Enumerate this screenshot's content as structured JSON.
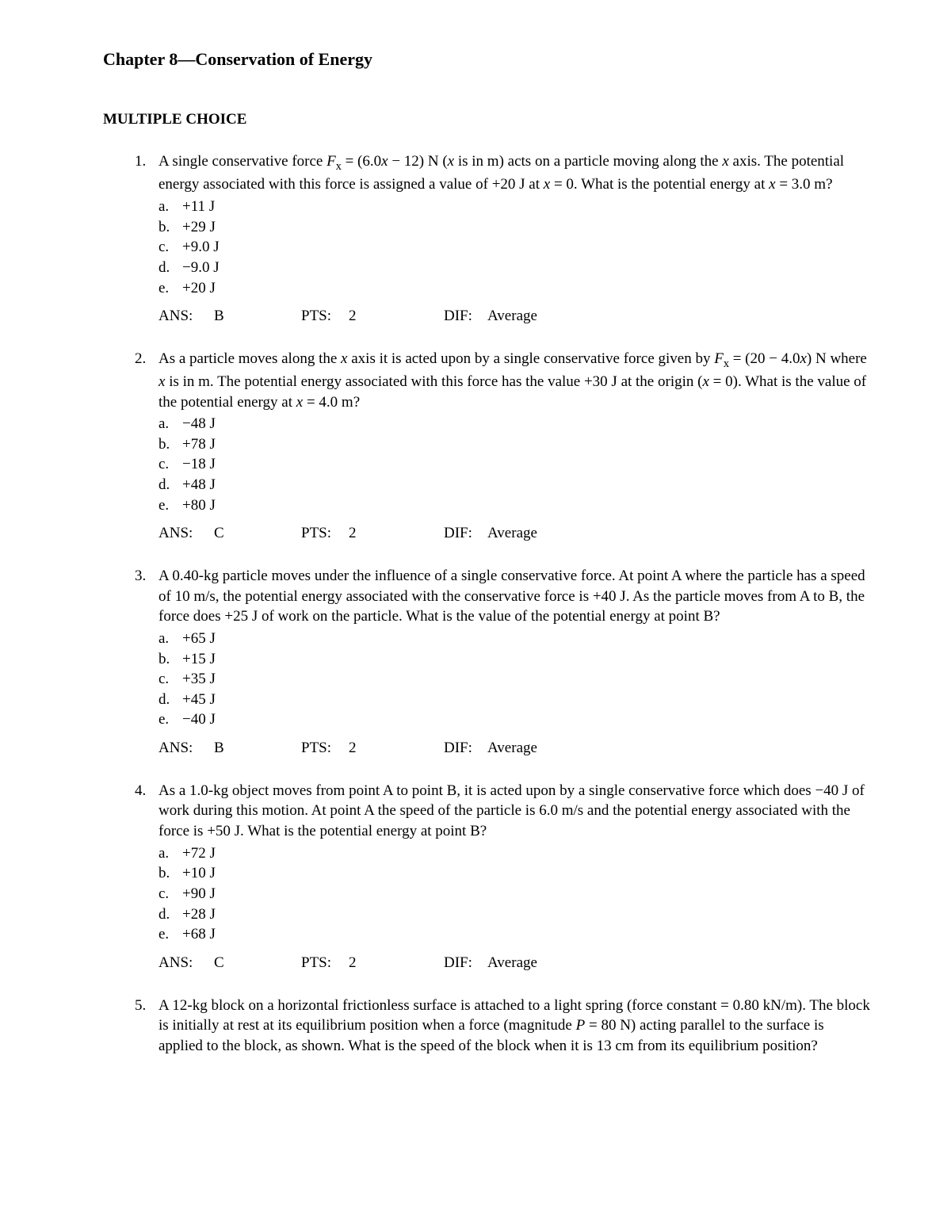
{
  "chapter_title": "Chapter 8—Conservation of Energy",
  "section_title": "MULTIPLE CHOICE",
  "labels": {
    "ans": "ANS:",
    "pts": "PTS:",
    "dif": "DIF:"
  },
  "questions": [
    {
      "number": "1.",
      "text_html": "A single conservative force <span class=\"italic\">F</span><span class=\"sub\">x</span> = (6.0<span class=\"italic\">x</span> − 12) N (<span class=\"italic\">x</span> is in m) acts on a particle moving along the <span class=\"italic\">x</span> axis. The potential energy associated with this force is assigned a value of +20 J at <span class=\"italic\">x</span> = 0. What is the potential energy at <span class=\"italic\">x</span> = 3.0 m?",
      "choices": [
        {
          "letter": "a.",
          "text": "+11 J"
        },
        {
          "letter": "b.",
          "text": "+29 J"
        },
        {
          "letter": "c.",
          "text": "+9.0 J"
        },
        {
          "letter": "d.",
          "text": "−9.0 J"
        },
        {
          "letter": "e.",
          "text": "+20 J"
        }
      ],
      "ans": "B",
      "pts": "2",
      "dif": "Average"
    },
    {
      "number": "2.",
      "text_html": "As a particle moves along the <span class=\"italic\">x</span> axis it is acted upon by a single conservative force given by <span class=\"italic\">F</span><span class=\"sub\">x</span> = (20 − 4.0<span class=\"italic\">x</span>) N where <span class=\"italic\">x</span> is in m. The potential energy associated with this force has the value +30 J at the origin (<span class=\"italic\">x</span> = 0). What is the value of the potential energy at <span class=\"italic\">x</span> = 4.0 m?",
      "choices": [
        {
          "letter": "a.",
          "text": "−48 J"
        },
        {
          "letter": "b.",
          "text": "+78 J"
        },
        {
          "letter": "c.",
          "text": "−18 J"
        },
        {
          "letter": "d.",
          "text": "+48 J"
        },
        {
          "letter": "e.",
          "text": "+80 J"
        }
      ],
      "ans": "C",
      "pts": "2",
      "dif": "Average"
    },
    {
      "number": "3.",
      "text_html": "A 0.40-kg particle moves under the influence of a single conservative force. At point A where the particle has a speed of 10 m/s, the potential energy associated with the conservative force is +40 J. As the particle moves from A to B, the force does +25 J of work on the particle. What is the value of the potential energy at point B?",
      "choices": [
        {
          "letter": "a.",
          "text": "+65 J"
        },
        {
          "letter": "b.",
          "text": "+15 J"
        },
        {
          "letter": "c.",
          "text": "+35 J"
        },
        {
          "letter": "d.",
          "text": "+45 J"
        },
        {
          "letter": "e.",
          "text": "−40 J"
        }
      ],
      "ans": "B",
      "pts": "2",
      "dif": "Average"
    },
    {
      "number": "4.",
      "text_html": "As a 1.0-kg object moves from point A to point B, it is acted upon by a single conservative force which does −40 J of work during this motion. At point A the speed of the particle is 6.0 m/s and the potential energy associated with the force is +50 J. What is the potential energy at point B?",
      "choices": [
        {
          "letter": "a.",
          "text": "+72 J"
        },
        {
          "letter": "b.",
          "text": "+10 J"
        },
        {
          "letter": "c.",
          "text": "+90 J"
        },
        {
          "letter": "d.",
          "text": "+28 J"
        },
        {
          "letter": "e.",
          "text": "+68 J"
        }
      ],
      "ans": "C",
      "pts": "2",
      "dif": "Average"
    },
    {
      "number": "5.",
      "text_html": "A 12-kg block on a horizontal frictionless surface is attached to a light spring (force constant = 0.80 kN/m). The block is initially at rest at its equilibrium position when a force (magnitude <span class=\"italic\">P</span> = 80 N) acting parallel to the surface is applied to the block, as shown. What is the speed of the block when it is 13 cm from its equilibrium position?",
      "choices": [],
      "ans": null,
      "pts": null,
      "dif": null
    }
  ]
}
